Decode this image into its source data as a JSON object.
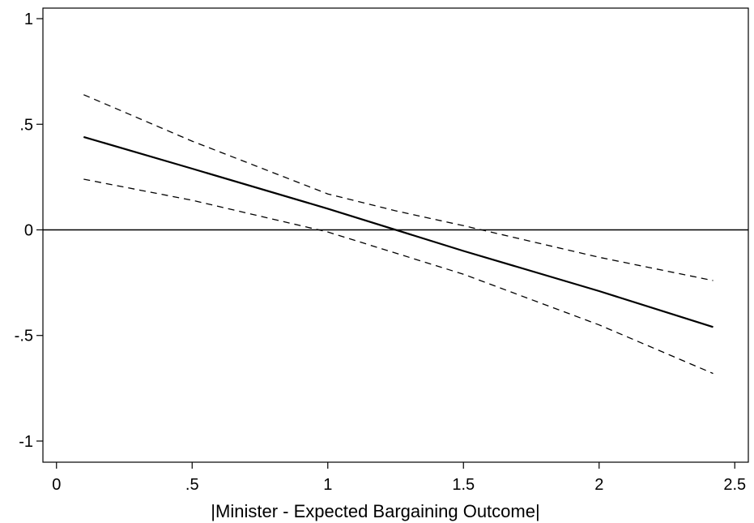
{
  "chart_data": {
    "type": "line",
    "title": "",
    "xlabel": "|Minister  - Expected Bargaining Outcome|",
    "ylabel": "",
    "xlim": [
      -0.05,
      2.55
    ],
    "ylim": [
      -1.1,
      1.05
    ],
    "x_ticks": [
      0,
      0.5,
      1,
      1.5,
      2,
      2.5
    ],
    "x_tick_labels": [
      "0",
      ".5",
      "1",
      "1.5",
      "2",
      "2.5"
    ],
    "y_ticks": [
      -1,
      -0.5,
      0,
      0.5,
      1
    ],
    "y_tick_labels": [
      "-1",
      "-.5",
      "0",
      ".5",
      "1"
    ],
    "grid": false,
    "legend": "none",
    "reference_line": {
      "y": 0,
      "color": "#000000"
    },
    "series": [
      {
        "style": "solid",
        "color": "#000000",
        "x": [
          0.1,
          0.5,
          1.0,
          1.5,
          2.0,
          2.42
        ],
        "y": [
          0.44,
          0.29,
          0.1,
          -0.1,
          -0.29,
          -0.46
        ]
      },
      {
        "style": "dashed",
        "color": "#000000",
        "x": [
          0.1,
          0.5,
          1.0,
          1.25,
          1.5,
          2.0,
          2.42
        ],
        "y": [
          0.64,
          0.42,
          0.17,
          0.09,
          0.02,
          -0.13,
          -0.24
        ]
      },
      {
        "style": "dashed",
        "color": "#000000",
        "x": [
          0.1,
          0.5,
          1.0,
          1.5,
          2.0,
          2.42
        ],
        "y": [
          0.24,
          0.14,
          -0.01,
          -0.21,
          -0.45,
          -0.68
        ]
      }
    ]
  }
}
